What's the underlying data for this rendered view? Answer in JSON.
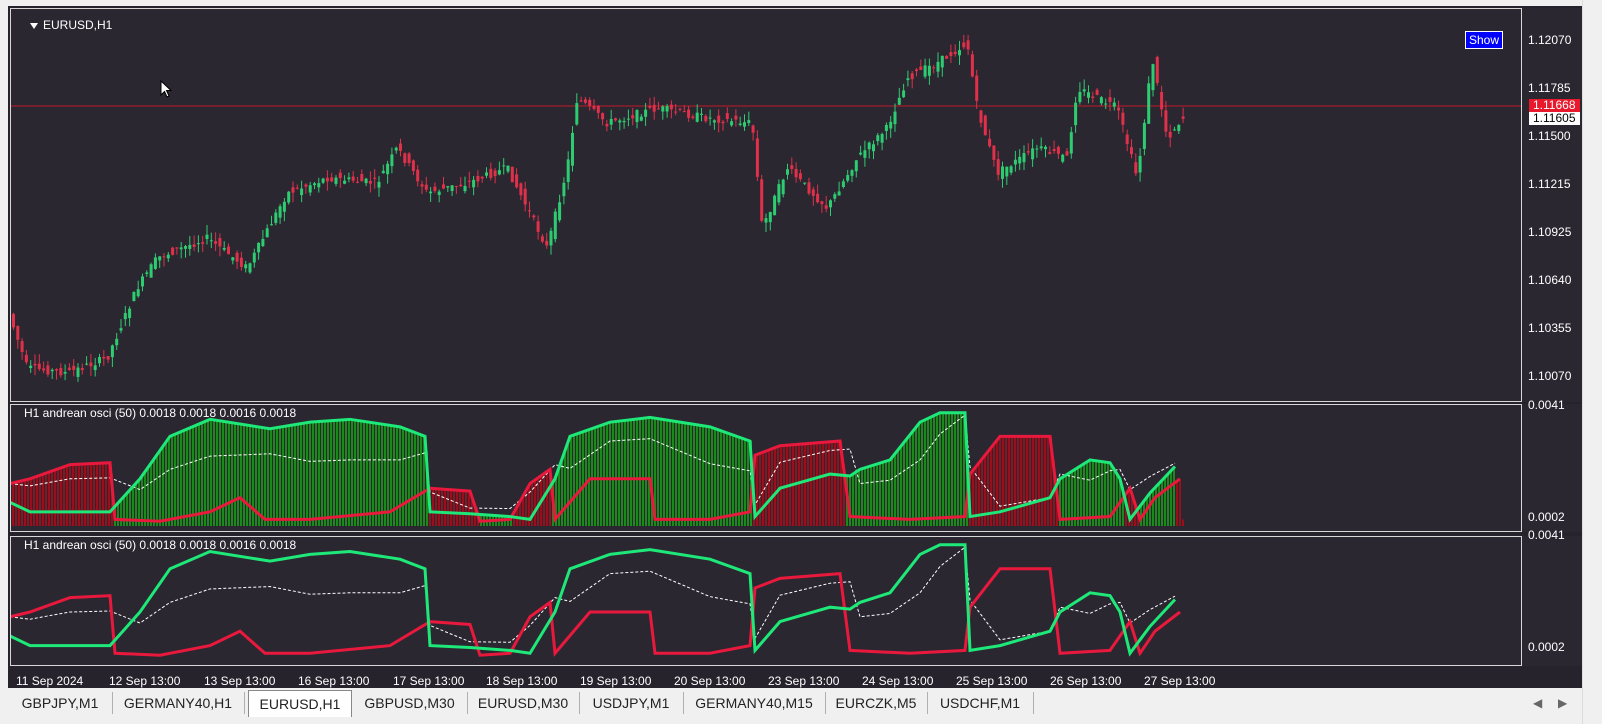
{
  "chart": {
    "symbol_title": "EURUSD,H1",
    "show_button": "Show",
    "price_axis": [
      "1.12070",
      "1.11785",
      "1.11500",
      "1.11215",
      "1.10925",
      "1.10640",
      "1.10355",
      "1.10070"
    ],
    "current_price_red": "1.11668",
    "current_price_white": "1.11605",
    "colors": {
      "background": "#2a2731",
      "bull": "#2ecc71",
      "bear": "#e0304a",
      "osc_green": "#1ee878",
      "osc_red": "#e8193c"
    }
  },
  "oscillator1": {
    "title": "H1 andrean osci (50) 0.0018 0.0018 0.0016 0.0018",
    "axis_top": "0.0041",
    "axis_bottom": "0.0002"
  },
  "oscillator2": {
    "title": "H1 andrean osci (50) 0.0018 0.0018 0.0016 0.0018",
    "axis_top": "0.0041",
    "axis_bottom": "0.0002"
  },
  "time_axis": [
    "11 Sep 2024",
    "12 Sep 13:00",
    "13 Sep 13:00",
    "16 Sep 13:00",
    "17 Sep 13:00",
    "18 Sep 13:00",
    "19 Sep 13:00",
    "20 Sep 13:00",
    "23 Sep 13:00",
    "24 Sep 13:00",
    "25 Sep 13:00",
    "26 Sep 13:00",
    "27 Sep 13:00"
  ],
  "tabs": [
    {
      "label": "GBPJPY,M1",
      "active": false
    },
    {
      "label": "GERMANY40,H1",
      "active": false
    },
    {
      "label": "EURUSD,H1",
      "active": true
    },
    {
      "label": "GBPUSD,M30",
      "active": false
    },
    {
      "label": "EURUSD,M30",
      "active": false
    },
    {
      "label": "USDJPY,M1",
      "active": false
    },
    {
      "label": "GERMANY40,M15",
      "active": false
    },
    {
      "label": "EURCZK,M5",
      "active": false
    },
    {
      "label": "USDCHF,M1",
      "active": false
    }
  ],
  "icons": {
    "scroll_left": "◀",
    "scroll_right": "▶"
  }
}
